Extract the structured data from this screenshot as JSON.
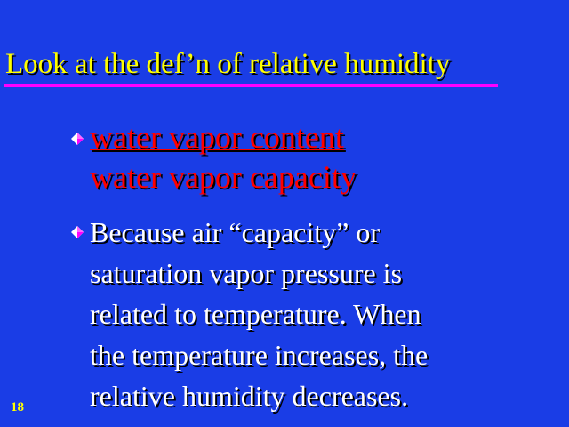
{
  "slide": {
    "title": "Look at the def’n of relative humidity",
    "bullets": [
      {
        "numerator": "water vapor content",
        "denominator": "water vapor capacity"
      },
      {
        "lines": [
          "Because air “capacity” or",
          "saturation vapor pressure is",
          "related to temperature. When",
          "the temperature increases, the",
          "relative humidity decreases."
        ]
      }
    ],
    "slide_number": "18"
  },
  "colors": {
    "background": "#1a3de6",
    "title": "#ffff00",
    "title_rule": "#ff00ff",
    "fraction_text": "#ff0000",
    "body_text": "#ffffff",
    "bullet_diamond": "#ffffff",
    "bullet_diamond_shade": "#ff00ff"
  },
  "icons": {
    "bullet": "diamond-bullet-icon"
  }
}
